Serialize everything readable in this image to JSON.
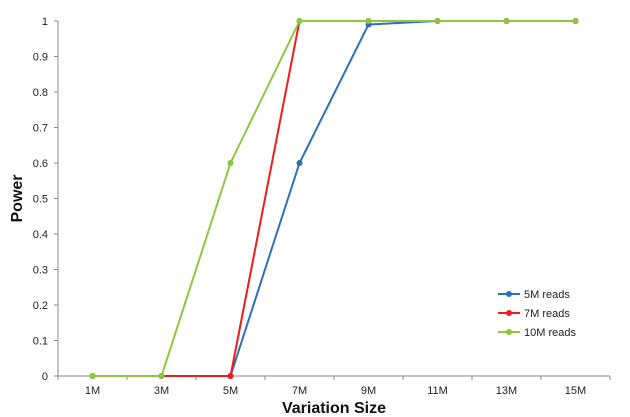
{
  "chart_data": {
    "type": "line",
    "title": "",
    "xlabel": "Variation Size",
    "ylabel": "Power",
    "categories": [
      "1M",
      "3M",
      "5M",
      "7M",
      "9M",
      "11M",
      "13M",
      "15M"
    ],
    "ylim": [
      0,
      1
    ],
    "yticks": [
      "0",
      "0.1",
      "0.2",
      "0.3",
      "0.4",
      "0.5",
      "0.6",
      "0.7",
      "0.8",
      "0.9",
      "1"
    ],
    "grid": false,
    "legend_position": "right",
    "series": [
      {
        "name": "5M reads",
        "color": "#2e6fb5",
        "values": [
          0,
          0,
          0,
          0.6,
          0.99,
          1,
          1,
          1
        ]
      },
      {
        "name": "7M reads",
        "color": "#ee1c1c",
        "values": [
          0,
          0,
          0,
          1,
          1,
          1,
          1,
          1
        ]
      },
      {
        "name": "10M reads",
        "color": "#8dc63f",
        "values": [
          0,
          0,
          0.6,
          1,
          1,
          1,
          1,
          1
        ]
      }
    ]
  }
}
